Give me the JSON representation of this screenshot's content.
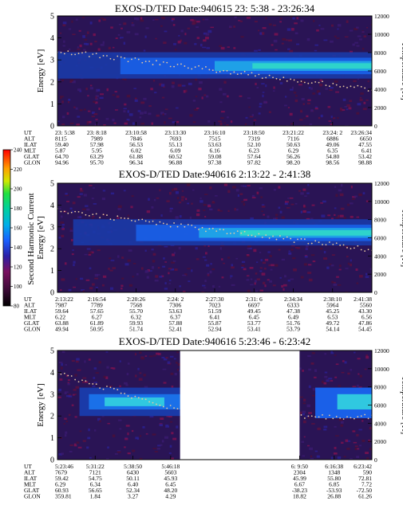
{
  "colorbar": {
    "label": "Second Harmonic Current",
    "ticks": [
      "80",
      "100",
      "120",
      "140",
      "160",
      "180",
      "200",
      "220",
      "240"
    ]
  },
  "chart_data": [
    {
      "type": "heatmap",
      "title": "EXOS-D/TED   Date:940615  23: 5:38 - 23:26:34",
      "ylabel": "Energy [eV]",
      "y2label": "Temperature [K]",
      "ylim": [
        0,
        5
      ],
      "yticks": [
        "0",
        "1",
        "2",
        "3",
        "4",
        "5"
      ],
      "y2lim": [
        0,
        12000
      ],
      "y2ticks": [
        "0",
        "2000",
        "4000",
        "6000",
        "8000",
        "10000",
        "12000"
      ],
      "gap": null,
      "orbit_labels": [
        "UT",
        "ALT",
        "ILAT",
        "MLT",
        "GLAT",
        "GLON"
      ],
      "orbit_columns": [
        [
          "23: 5:38",
          "8115",
          "59.40",
          "5.87",
          "64.70",
          "94.96"
        ],
        [
          "23: 8:18",
          "7989",
          "57.98",
          "5.95",
          "63.29",
          "95.70"
        ],
        [
          "23:10:58",
          "7846",
          "56.53",
          "6.02",
          "61.88",
          "96.34"
        ],
        [
          "23:13:30",
          "7693",
          "55.13",
          "6.09",
          "60.52",
          "96.88"
        ],
        [
          "23:16:10",
          "7515",
          "53.63",
          "6.16",
          "59.08",
          "97.38"
        ],
        [
          "23:18:50",
          "7319",
          "52.10",
          "6.23",
          "57.64",
          "97.82"
        ],
        [
          "23:21:22",
          "7116",
          "50.63",
          "6.29",
          "56.26",
          "98.20"
        ],
        [
          "23:24: 2",
          "6886",
          "49.06",
          "6.35",
          "54.80",
          "98.56"
        ],
        [
          "23:26:34",
          "6650",
          "47.55",
          "6.41",
          "53.42",
          "98.88"
        ]
      ]
    },
    {
      "type": "heatmap",
      "title": "EXOS-D/TED   Date:940616   2:13:22 - 2:41:38",
      "ylabel": "Energy [eV]",
      "y2label": "Temperature [K]",
      "ylim": [
        0,
        5
      ],
      "yticks": [
        "0",
        "1",
        "2",
        "3",
        "4",
        "5"
      ],
      "y2lim": [
        0,
        12000
      ],
      "y2ticks": [
        "0",
        "2000",
        "4000",
        "6000",
        "8000",
        "10000",
        "12000"
      ],
      "gap": null,
      "orbit_labels": [
        "UT",
        "ALT",
        "ILAT",
        "MLT",
        "GLAT",
        "GLON"
      ],
      "orbit_columns": [
        [
          "2:13:22",
          "7987",
          "59.64",
          "6.22",
          "63.88",
          "49.94"
        ],
        [
          "2:16:54",
          "7789",
          "57.65",
          "6.27",
          "61.89",
          "50.95"
        ],
        [
          "2:20:26",
          "7568",
          "55.70",
          "6.32",
          "59.93",
          "51.74"
        ],
        [
          "2:24: 2",
          "7306",
          "53.63",
          "6.37",
          "57.88",
          "52.41"
        ],
        [
          "2:27:30",
          "7023",
          "51.59",
          "6.41",
          "55.87",
          "52.94"
        ],
        [
          "2:31: 6",
          "6697",
          "49.45",
          "6.45",
          "53.77",
          "53.41"
        ],
        [
          "2:34:34",
          "6333",
          "47.38",
          "6.49",
          "51.76",
          "53.79"
        ],
        [
          "2:38:10",
          "5964",
          "45.25",
          "6.53",
          "49.72",
          "54.14"
        ],
        [
          "2:41:38",
          "5560",
          "43.30",
          "6.56",
          "47.86",
          "54.45"
        ]
      ]
    },
    {
      "type": "heatmap",
      "title": "EXOS-D/TED   Date:940616  5:23:46 - 6:23:42",
      "ylabel": "Energy [eV]",
      "y2label": "Temperature [K]",
      "ylim": [
        0,
        5
      ],
      "yticks": [
        "0",
        "1",
        "2",
        "3",
        "4",
        "5"
      ],
      "y2lim": [
        0,
        12000
      ],
      "y2ticks": [
        "0",
        "2000",
        "4000",
        "6000",
        "8000",
        "10000",
        "12000"
      ],
      "gap": [
        0.39,
        0.77
      ],
      "orbit_labels": [
        "UT",
        "ALT",
        "ILAT",
        "MLT",
        "GLAT",
        "GLON"
      ],
      "orbit_columns": [
        [
          "5:23:46",
          "7679",
          "59.42",
          "6.29",
          "60.93",
          "359.81"
        ],
        [
          "5:31:22",
          "7121",
          "54.75",
          "6.34",
          "56.65",
          "1.84"
        ],
        [
          "5:38:50",
          "6430",
          "50.11",
          "6.40",
          "52.34",
          "3.27"
        ],
        [
          "5:46:18",
          "5603",
          "45.93",
          "6.45",
          "48.20",
          "4.29"
        ],
        [
          "6: 9:50",
          "2304",
          "45.99",
          "6.67",
          "-38.23",
          "18.82"
        ],
        [
          "6:16:38",
          "1348",
          "55.80",
          "6.85",
          "-53.93",
          "26.88"
        ],
        [
          "6:23:42",
          "590",
          "72.81",
          "7.72",
          "-72.50",
          "61.26"
        ]
      ]
    }
  ]
}
